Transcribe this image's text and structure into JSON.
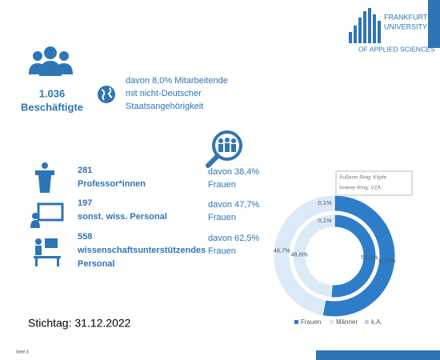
{
  "logo": {
    "lines": [
      "FRANKFURT",
      "UNIVERSITY",
      "OF APPLIED SCIENCES"
    ]
  },
  "headline": {
    "total": "1.036",
    "total_label": "Beschäftigte",
    "note_lines": [
      "davon 8,0% Mitarbeitende",
      "mit nicht-Deutscher",
      "Staatsangehörigkeit"
    ]
  },
  "staff": [
    {
      "count": "281",
      "label_lines": [
        "Professor*innen"
      ],
      "share_lines": [
        "davon 38,4%",
        "Frauen"
      ]
    },
    {
      "count": "197",
      "label_lines": [
        "sonst. wiss. Personal"
      ],
      "share_lines": [
        "davon 47,7%",
        "Frauen"
      ]
    },
    {
      "count": "558",
      "label_lines": [
        "wissenschaftsunterstützendes",
        "Personal"
      ],
      "share_lines": [
        "davon 62,5%",
        "Frauen"
      ]
    }
  ],
  "chart_data": {
    "type": "donut",
    "categories": [
      "Frauen",
      "Männer",
      "k.A."
    ],
    "colors": [
      "#2e7dc8",
      "#dce9f6",
      "#b9d3ec"
    ],
    "series": [
      {
        "name": "Äußerer Ring: Köpfe",
        "values": [
          53.2,
          46.7,
          0.1
        ],
        "value_labels": [
          "53,2%",
          "46,7%",
          "0,1%"
        ]
      },
      {
        "name": "Innerer Ring: VZÄ",
        "values": [
          51.3,
          48.6,
          0.1
        ],
        "value_labels": [
          "51,3%",
          "48,6%",
          "0,1%"
        ]
      }
    ]
  },
  "stichtag": "Stichtag: 31.12.2022",
  "footer": "Seite 3"
}
